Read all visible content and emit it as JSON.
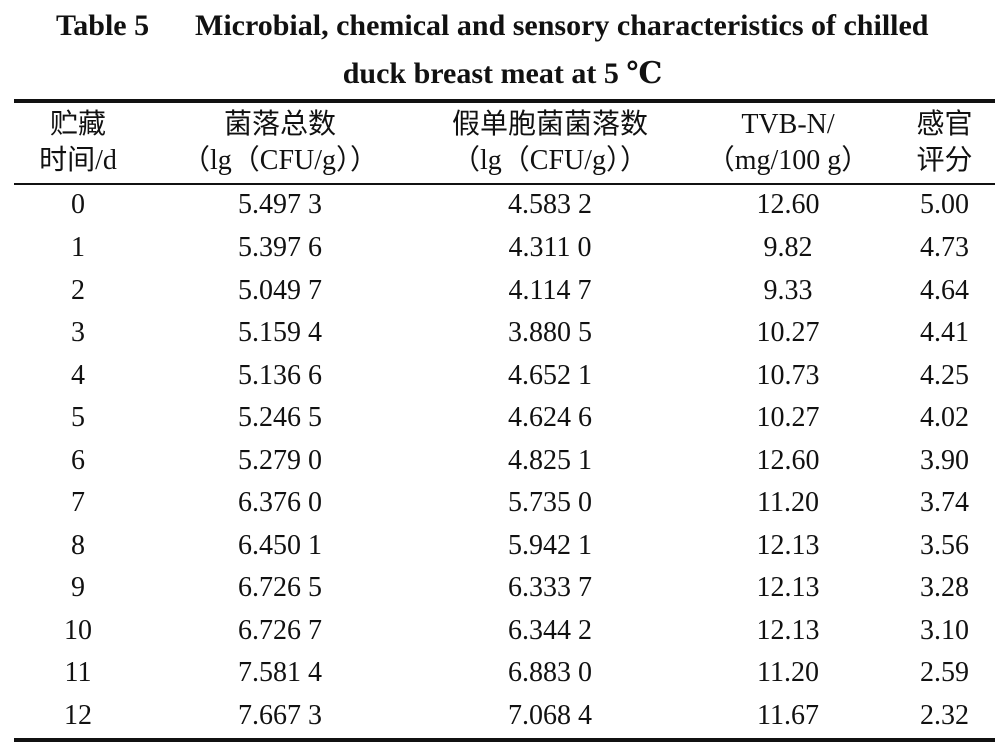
{
  "caption": {
    "label": "Table 5",
    "title_line1": "Microbial, chemical and sensory characteristics of chilled",
    "title_line2": "duck breast meat at 5 ℃"
  },
  "table": {
    "columns": [
      {
        "line1": "贮藏",
        "line2": "时间/d"
      },
      {
        "line1": "菌落总数",
        "line2": "（lg（CFU/g））"
      },
      {
        "line1": "假单胞菌菌落数",
        "line2": "（lg（CFU/g））"
      },
      {
        "line1": "TVB-N/",
        "line2": "（mg/100 g）"
      },
      {
        "line1": "感官",
        "line2": "评分"
      }
    ],
    "rows": [
      [
        "0",
        "5.497 3",
        "4.583 2",
        "12.60",
        "5.00"
      ],
      [
        "1",
        "5.397 6",
        "4.311 0",
        "9.82",
        "4.73"
      ],
      [
        "2",
        "5.049 7",
        "4.114 7",
        "9.33",
        "4.64"
      ],
      [
        "3",
        "5.159 4",
        "3.880 5",
        "10.27",
        "4.41"
      ],
      [
        "4",
        "5.136 6",
        "4.652 1",
        "10.73",
        "4.25"
      ],
      [
        "5",
        "5.246 5",
        "4.624 6",
        "10.27",
        "4.02"
      ],
      [
        "6",
        "5.279 0",
        "4.825 1",
        "12.60",
        "3.90"
      ],
      [
        "7",
        "6.376 0",
        "5.735 0",
        "11.20",
        "3.74"
      ],
      [
        "8",
        "6.450 1",
        "5.942 1",
        "12.13",
        "3.56"
      ],
      [
        "9",
        "6.726 5",
        "6.333 7",
        "12.13",
        "3.28"
      ],
      [
        "10",
        "6.726 7",
        "6.344 2",
        "12.13",
        "3.10"
      ],
      [
        "11",
        "7.581 4",
        "6.883 0",
        "11.20",
        "2.59"
      ],
      [
        "12",
        "7.667 3",
        "7.068 4",
        "11.67",
        "2.32"
      ]
    ]
  }
}
